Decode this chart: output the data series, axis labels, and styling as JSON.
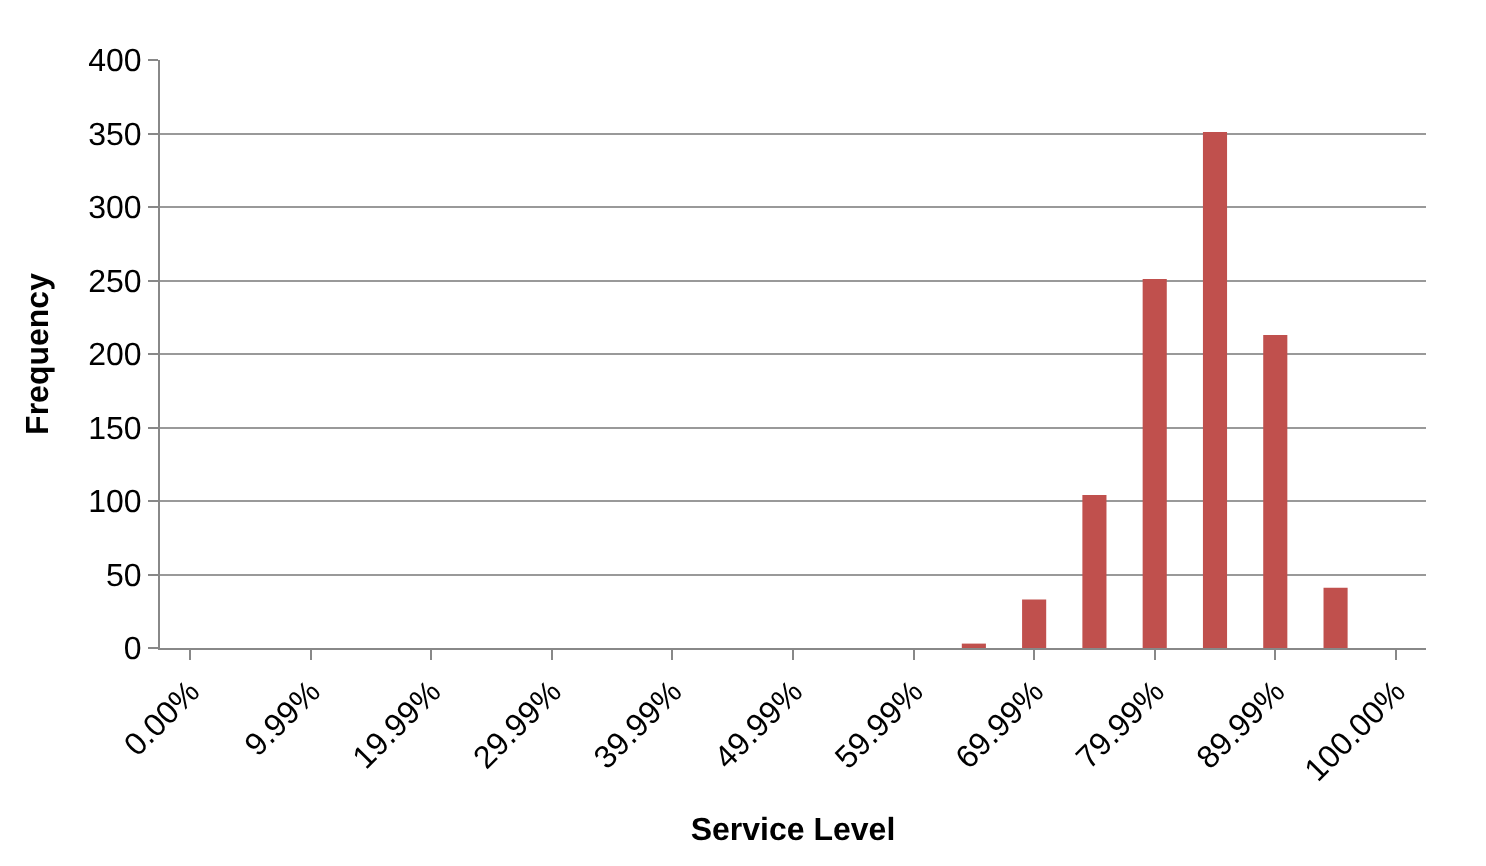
{
  "chart_data": {
    "type": "bar",
    "xlabel": "Service Level",
    "ylabel": "Frequency",
    "categories": [
      "0.00%",
      null,
      "9.99%",
      null,
      "19.99%",
      null,
      "29.99%",
      null,
      "39.99%",
      null,
      "49.99%",
      null,
      "59.99%",
      null,
      "69.99%",
      null,
      "79.99%",
      null,
      "89.99%",
      null,
      "100.00%"
    ],
    "series": [
      {
        "color": "#c0504d",
        "values": [
          0,
          0,
          0,
          0,
          0,
          0,
          0,
          0,
          0,
          0,
          0,
          0,
          0,
          3,
          33,
          104,
          251,
          351,
          213,
          41,
          0
        ]
      }
    ],
    "ylim": [
      0,
      400
    ],
    "yticks": [
      0,
      50,
      100,
      150,
      200,
      250,
      300,
      350,
      400
    ],
    "grid": "y"
  }
}
